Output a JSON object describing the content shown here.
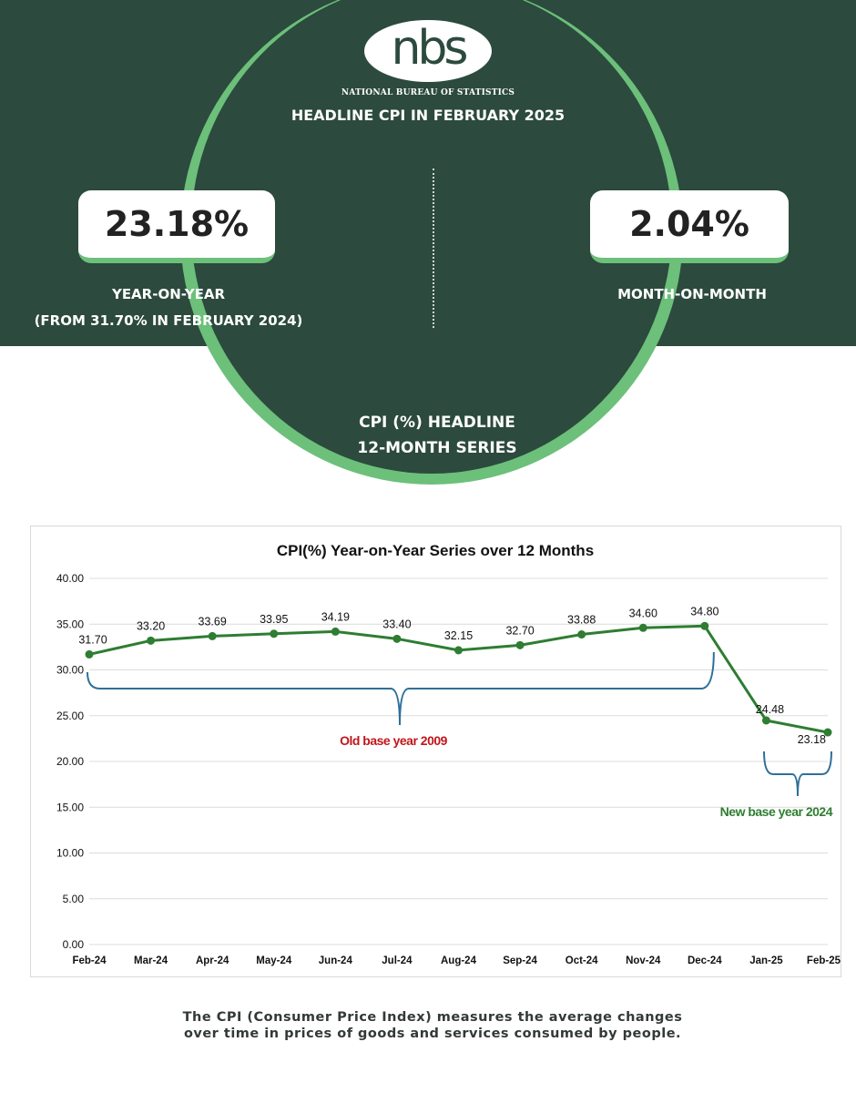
{
  "header": {
    "logo_text": "nbs",
    "agency": "NATIONAL BUREAU OF STATISTICS",
    "title": "HEADLINE CPI IN FEBRUARY 2025"
  },
  "stats": {
    "yoy_value": "23.18%",
    "yoy_label": "YEAR-ON-YEAR",
    "yoy_sub": "(FROM 31.70% IN FEBRUARY 2024)",
    "mom_value": "2.04%",
    "mom_label": "MONTH-ON-MONTH"
  },
  "series_label": {
    "line1": "CPI (%)  HEADLINE",
    "line2": "12-MONTH SERIES"
  },
  "chart_data": {
    "type": "line",
    "title": "CPI(%) Year-on-Year Series over 12 Months",
    "categories": [
      "Feb-24",
      "Mar-24",
      "Apr-24",
      "May-24",
      "Jun-24",
      "Jul-24",
      "Aug-24",
      "Sep-24",
      "Oct-24",
      "Nov-24",
      "Dec-24",
      "Jan-25",
      "Feb-25"
    ],
    "values": [
      31.7,
      33.2,
      33.69,
      33.95,
      34.19,
      33.4,
      32.15,
      32.7,
      33.88,
      34.6,
      34.8,
      24.48,
      23.18
    ],
    "data_labels": [
      "31.70",
      "33.20",
      "33.69",
      "33.95",
      "34.19",
      "33.40",
      "32.15",
      "32.70",
      "33.88",
      "34.60",
      "34.80",
      "24.48",
      "23.18"
    ],
    "y_ticks": [
      "0.00",
      "5.00",
      "10.00",
      "15.00",
      "20.00",
      "25.00",
      "30.00",
      "35.00",
      "40.00"
    ],
    "ylim": [
      0,
      40
    ],
    "grid": true,
    "line_color": "#2e7d32",
    "annotations": [
      {
        "text": "Old base year 2009",
        "color": "#c0151b"
      },
      {
        "text": "New base year 2024",
        "color": "#2e7d32"
      }
    ],
    "bracket_color": "#2f6f9a"
  },
  "footnote": {
    "line1": "The CPI (Consumer Price Index) measures the average changes",
    "line2": "over time in prices of goods and services consumed by people."
  },
  "colors": {
    "dark_green": "#2c4a3e",
    "accent_green": "#6cc07a"
  }
}
